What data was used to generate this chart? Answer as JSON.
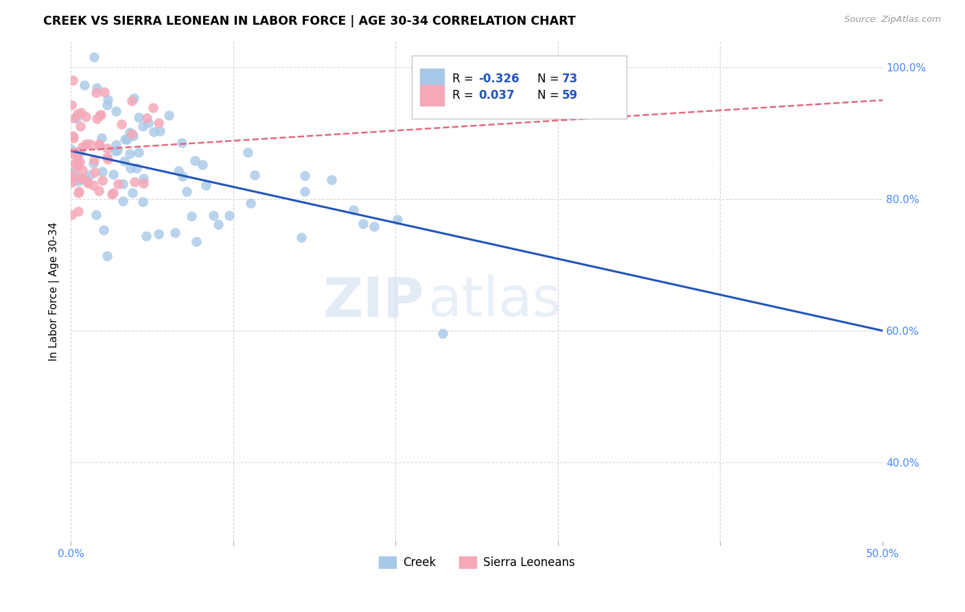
{
  "title": "CREEK VS SIERRA LEONEAN IN LABOR FORCE | AGE 30-34 CORRELATION CHART",
  "source": "Source: ZipAtlas.com",
  "ylabel": "In Labor Force | Age 30-34",
  "xlim": [
    0.0,
    0.5
  ],
  "ylim": [
    0.28,
    1.04
  ],
  "creek_color": "#a8c8e8",
  "sierra_color": "#f4a8b8",
  "creek_line_color": "#2255bb",
  "sierra_line_color": "#e06880",
  "legend_r_color": "#2255bb",
  "legend_n_color": "#2255bb",
  "tick_color": "#4488ff",
  "watermark1": "ZIP",
  "watermark2": "atlas",
  "creek_line_y0": 0.873,
  "creek_line_y1": 0.6,
  "sierra_line_y0": 0.873,
  "sierra_line_y1": 0.95
}
